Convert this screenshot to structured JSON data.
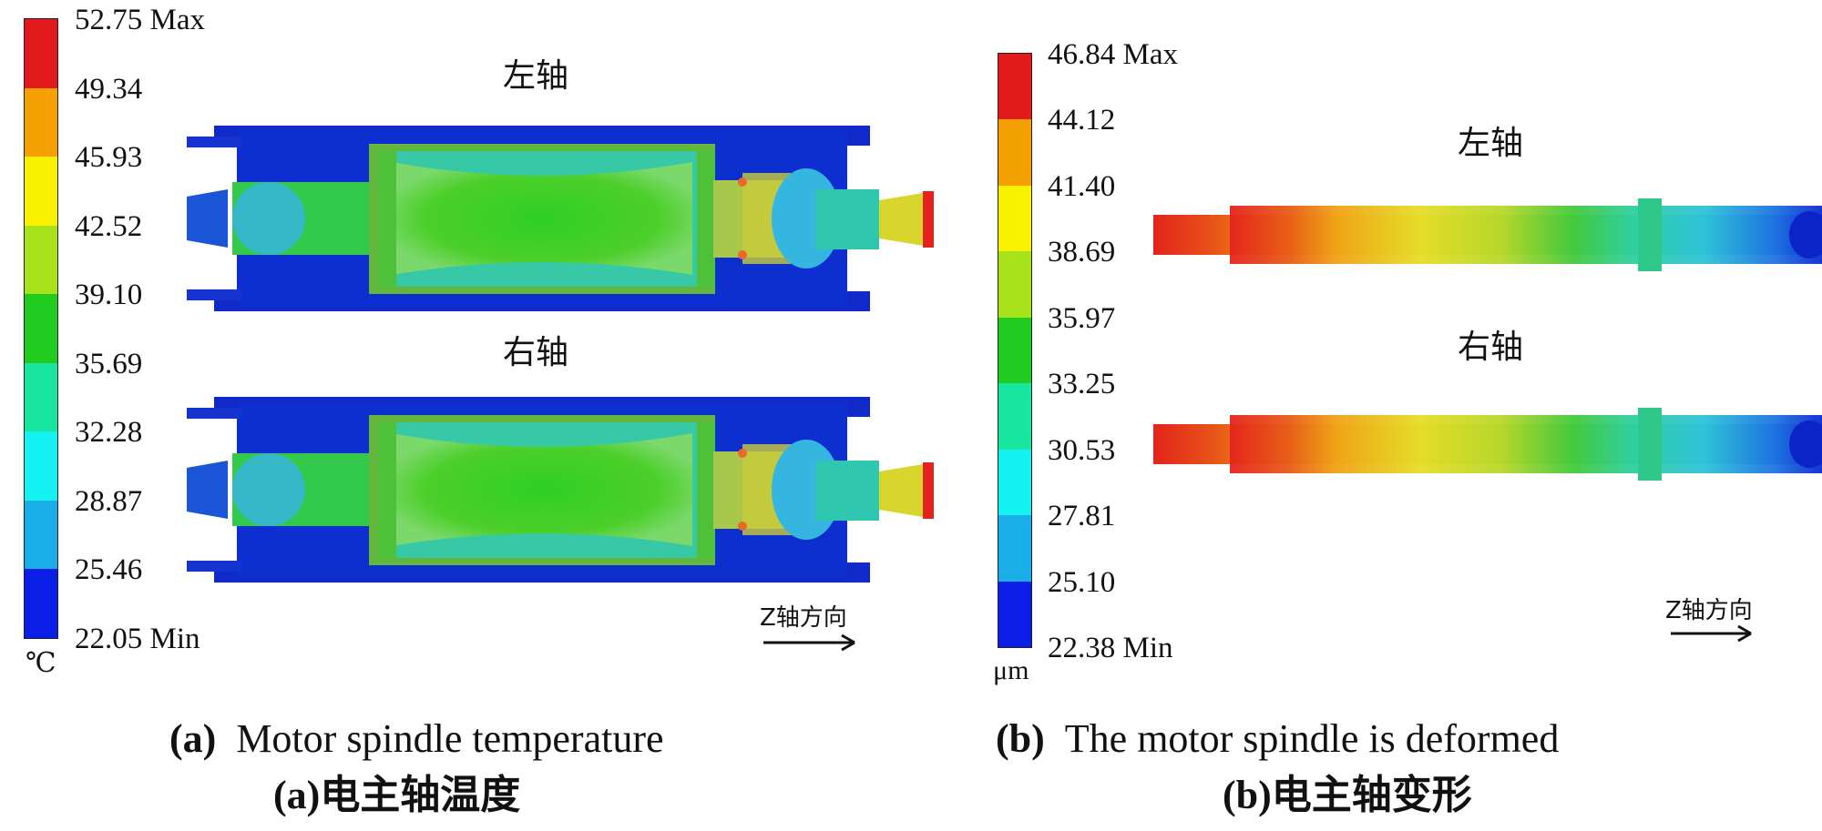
{
  "panel_a": {
    "legend": {
      "unit": "℃",
      "max_suffix": "Max",
      "min_suffix": "Min",
      "ticks": [
        "52.75",
        "49.34",
        "45.93",
        "42.52",
        "39.10",
        "35.69",
        "32.28",
        "28.87",
        "25.46",
        "22.05"
      ],
      "colors": [
        "#e31a1c",
        "#f4a000",
        "#f8f200",
        "#a8e21a",
        "#1fcc1f",
        "#18e6a0",
        "#14f2f2",
        "#1aaee8",
        "#0a1ee8"
      ]
    },
    "label_left": "左轴",
    "label_right": "右轴",
    "z_axis": "Z轴方向",
    "caption_en_tag": "(a)",
    "caption_en_text": "Motor spindle temperature",
    "caption_cn_tag": "(a)",
    "caption_cn_text": "电主轴温度"
  },
  "panel_b": {
    "legend": {
      "unit": "μm",
      "max_suffix": "Max",
      "min_suffix": "Min",
      "ticks": [
        "46.84",
        "44.12",
        "41.40",
        "38.69",
        "35.97",
        "33.25",
        "30.53",
        "27.81",
        "25.10",
        "22.38"
      ],
      "colors": [
        "#e31a1c",
        "#f4a000",
        "#f8f200",
        "#a8e21a",
        "#1fcc1f",
        "#18e6a0",
        "#14f2f2",
        "#1aaee8",
        "#0a1ee8"
      ]
    },
    "label_left": "左轴",
    "label_right": "右轴",
    "z_axis": "Z轴方向",
    "caption_en_tag": "(b)",
    "caption_en_text": "The motor spindle is deformed",
    "caption_cn_tag": "(b)",
    "caption_cn_text": "电主轴变形"
  }
}
